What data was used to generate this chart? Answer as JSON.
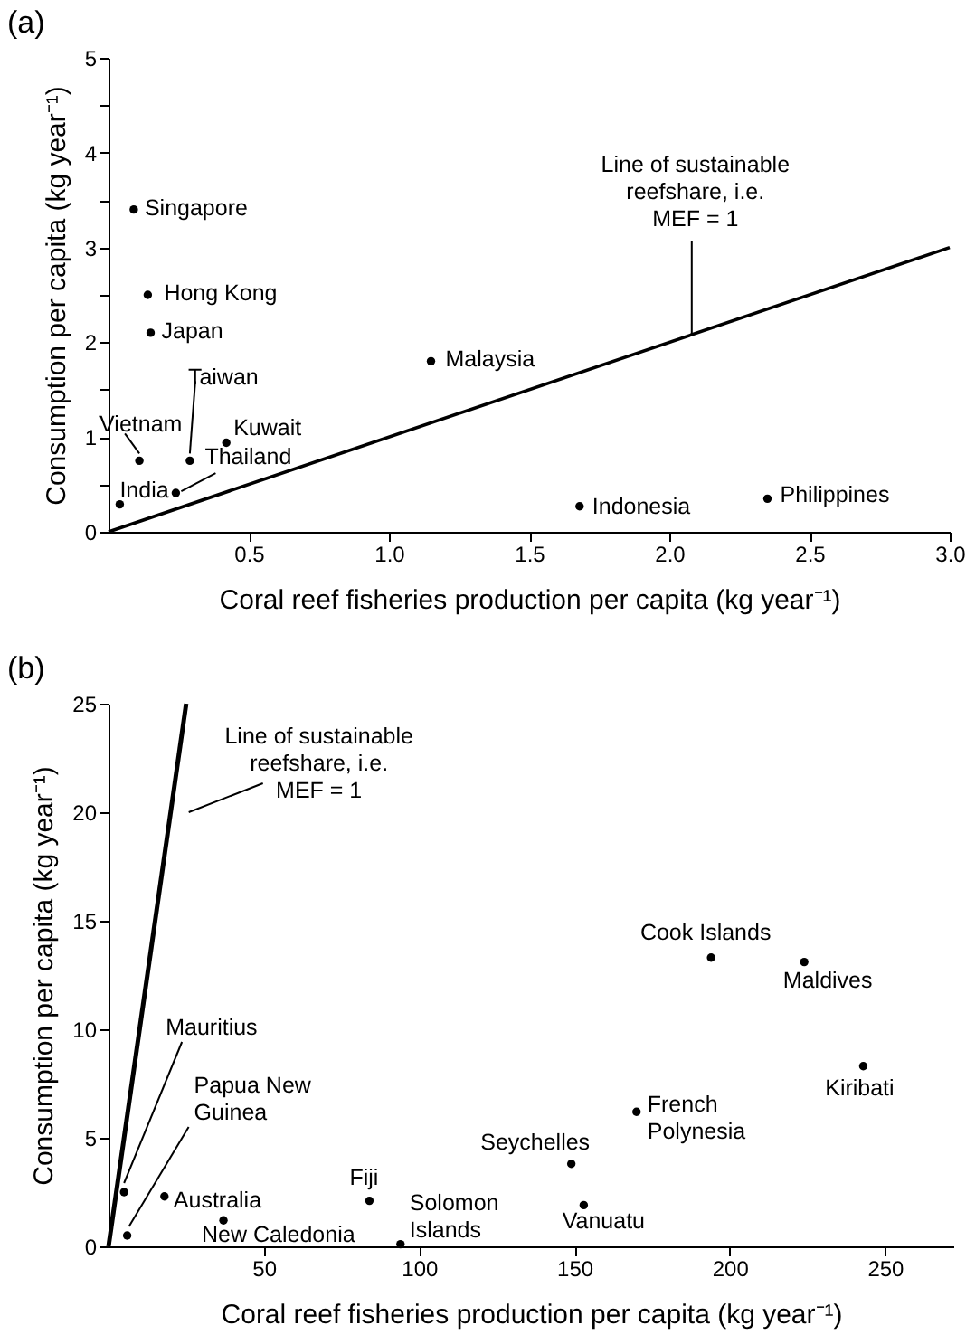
{
  "chart_data": [
    {
      "type": "scatter",
      "title": "(a)",
      "xlabel": "Coral reef fisheries production per capita (kg year⁻¹)",
      "ylabel": "Consumption per capita (kg year⁻¹)",
      "xlim": [
        0,
        3
      ],
      "ylim": [
        0,
        5
      ],
      "xticks": [
        0.5,
        {
          "value": 1,
          "label": "1.0"
        },
        1.5,
        {
          "value": 2,
          "label": "2.0"
        },
        2.5,
        {
          "value": 3,
          "label": "3.0"
        }
      ],
      "yticks": [
        0,
        {
          "value": 0.5,
          "label": null
        },
        1,
        {
          "value": 1.5,
          "label": null
        },
        2,
        {
          "value": 2.5,
          "label": null
        },
        3,
        {
          "value": 3.5,
          "label": null
        },
        4,
        {
          "value": 4.5,
          "label": null
        },
        5
      ],
      "grid": false,
      "series": [
        {
          "type": "scatter",
          "marker": "circle",
          "color": "#000000",
          "x": [
            0.09,
            0.14,
            0.15,
            1.15,
            0.11,
            0.29,
            0.42,
            0.24,
            0.04,
            1.68,
            2.35
          ],
          "values": [
            3.4,
            2.5,
            2.1,
            1.8,
            0.75,
            0.75,
            0.94,
            0.41,
            0.29,
            0.27,
            0.35
          ]
        },
        {
          "type": "line",
          "color": "#000000",
          "x": [
            0,
            3
          ],
          "values": [
            0,
            3
          ]
        }
      ],
      "annotations": [
        {
          "text": "Singapore",
          "x": 0.09,
          "y": 3.4
        },
        {
          "text": "Hong Kong",
          "x": 0.14,
          "y": 2.5
        },
        {
          "text": "Japan",
          "x": 0.15,
          "y": 2.1
        },
        {
          "text": "Malaysia",
          "x": 1.15,
          "y": 1.8
        },
        {
          "text": "Vietnam",
          "x": 0.11,
          "y": 0.75
        },
        {
          "text": "Taiwan",
          "x": 0.29,
          "y": 0.75
        },
        {
          "text": "Kuwait",
          "x": 0.42,
          "y": 0.94
        },
        {
          "text": "Thailand",
          "x": 0.24,
          "y": 0.41
        },
        {
          "text": "India",
          "x": 0.04,
          "y": 0.29
        },
        {
          "text": "Indonesia",
          "x": 1.68,
          "y": 0.27
        },
        {
          "text": "Philippines",
          "x": 2.35,
          "y": 0.35
        },
        {
          "text": "Line of sustainable reefshare, i.e. MEF = 1",
          "x": 2.08,
          "y": 2.08
        }
      ]
    },
    {
      "type": "scatter",
      "title": "(b)",
      "xlabel": "Coral reef fisheries production per capita (kg year⁻¹)",
      "ylabel": "Consumption per capita (kg year⁻¹)",
      "xlim": [
        0,
        272
      ],
      "ylim": [
        0,
        25
      ],
      "xticks": [
        50,
        100,
        150,
        200,
        250
      ],
      "yticks": [
        0,
        5,
        10,
        15,
        20,
        25
      ],
      "grid": false,
      "series": [
        {
          "type": "scatter",
          "marker": "circle",
          "color": "#000000",
          "x": [
            5,
            6,
            18,
            37,
            84,
            94,
            149,
            153,
            170,
            194,
            224,
            243
          ],
          "values": [
            2.5,
            0.5,
            2.3,
            1.2,
            2.1,
            0.1,
            3.8,
            1.9,
            6.2,
            13.3,
            13.1,
            8.3
          ]
        },
        {
          "type": "line",
          "color": "#000000",
          "x": [
            0,
            25
          ],
          "values": [
            0,
            25
          ]
        }
      ],
      "annotations": [
        {
          "text": "Mauritius",
          "x": 5,
          "y": 2.5
        },
        {
          "text": "Papua New Guinea",
          "x": 6,
          "y": 0.5
        },
        {
          "text": "Australia",
          "x": 18,
          "y": 2.3
        },
        {
          "text": "New Caledonia",
          "x": 37,
          "y": 1.2
        },
        {
          "text": "Fiji",
          "x": 84,
          "y": 2.1
        },
        {
          "text": "Solomon Islands",
          "x": 94,
          "y": 0.1
        },
        {
          "text": "Seychelles",
          "x": 149,
          "y": 3.8
        },
        {
          "text": "Vanuatu",
          "x": 153,
          "y": 1.9
        },
        {
          "text": "French Polynesia",
          "x": 170,
          "y": 6.2
        },
        {
          "text": "Cook Islands",
          "x": 194,
          "y": 13.3
        },
        {
          "text": "Maldives",
          "x": 224,
          "y": 13.1
        },
        {
          "text": "Kiribati",
          "x": 243,
          "y": 8.3
        },
        {
          "text": "Line of sustainable reefshare, i.e. MEF = 1",
          "x": 20,
          "y": 20
        }
      ]
    }
  ]
}
